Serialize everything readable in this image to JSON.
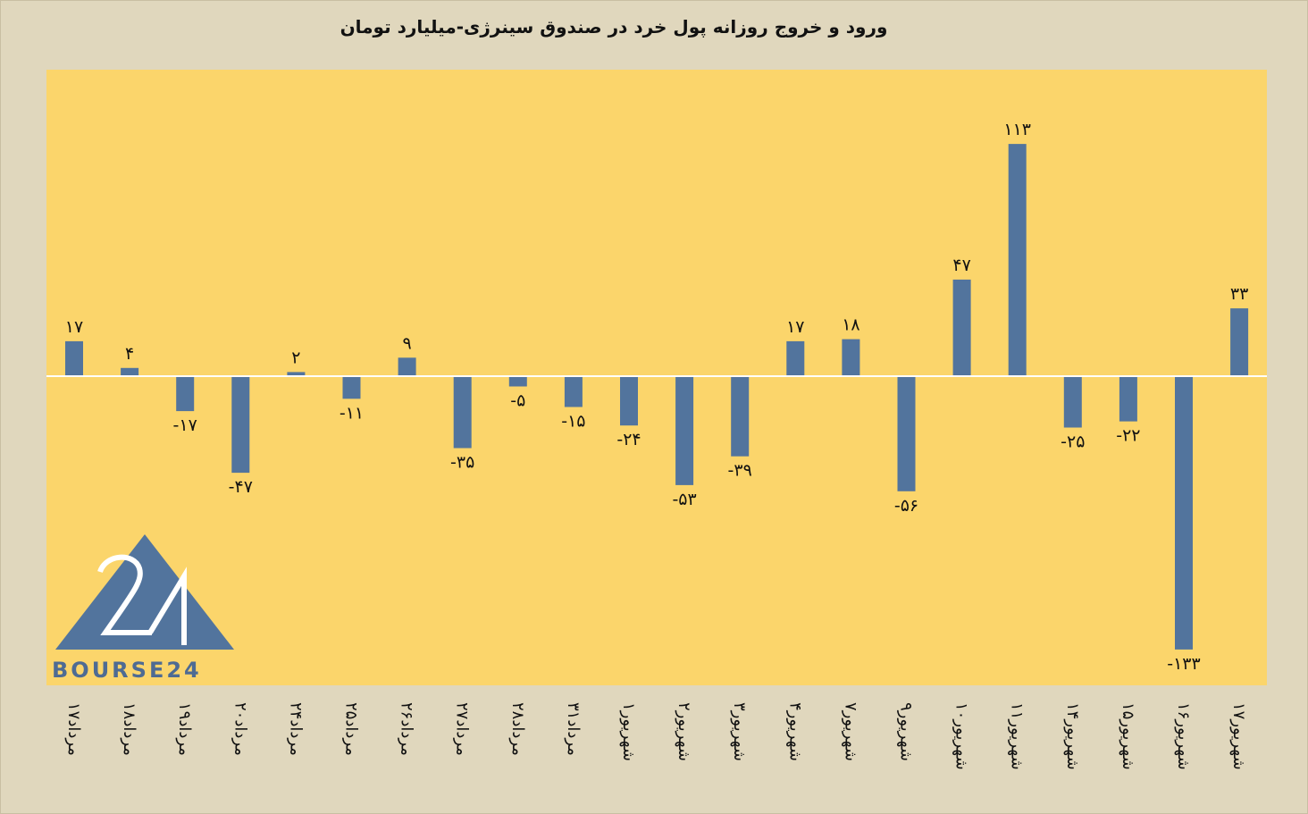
{
  "chart_data": {
    "type": "bar",
    "title": "ورود و خروج روزانه پول خرد در صندوق سینرژی-میلیارد تومان",
    "categories": [
      "۱۷مرداد",
      "۱۸مرداد",
      "۱۹مرداد",
      "۲۰مرداد",
      "۲۴مرداد",
      "۲۵مرداد",
      "۲۶مرداد",
      "۲۷مرداد",
      "۲۸مرداد",
      "۳۱مرداد",
      "۱شهریور",
      "۲شهریور",
      "۳شهریور",
      "۴شهریور",
      "۷شهریور",
      "۹شهریور",
      "۱۰شهریور",
      "۱۱شهریور",
      "۱۴شهریور",
      "۱۵شهریور",
      "۱۶شهریور",
      "۱۷شهریور"
    ],
    "values": [
      17,
      4,
      -17,
      -47,
      2,
      -11,
      9,
      -35,
      -5,
      -15,
      -24,
      -53,
      -39,
      17,
      18,
      -56,
      47,
      113,
      -25,
      -22,
      -133,
      33
    ],
    "value_labels": [
      "۱۷",
      "۴",
      "-۱۷",
      "-۴۷",
      "۲",
      "-۱۱",
      "۹",
      "-۳۵",
      "-۵",
      "-۱۵",
      "-۲۴",
      "-۵۳",
      "-۳۹",
      "۱۷",
      "۱۸",
      "-۵۶",
      "۴۷",
      "۱۱۳",
      "-۲۵",
      "-۲۲",
      "-۱۳۳",
      "۳۳"
    ],
    "ylim": [
      -150,
      150
    ],
    "grid": false,
    "colors": {
      "bar": "#52749d",
      "plot_background": "#fbd56b",
      "page_background": "#e0d7bd",
      "zero_line": "#ffffff"
    }
  },
  "watermark": {
    "text": "BOURSE24",
    "mark": "24"
  }
}
